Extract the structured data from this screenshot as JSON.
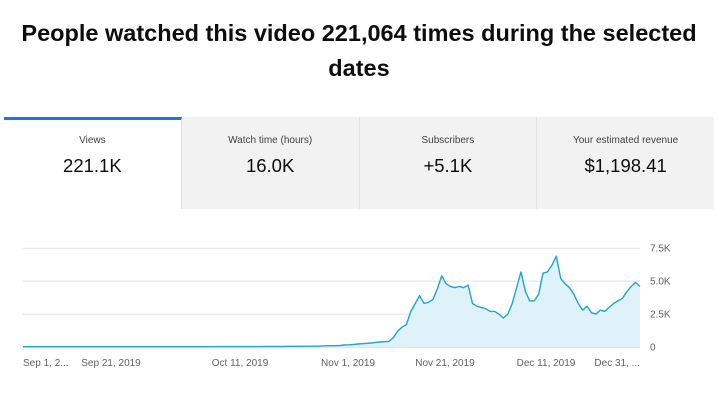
{
  "headline": {
    "line1": "People watched this video 221,064 times during the selected",
    "line2": "dates"
  },
  "tabs": [
    {
      "label": "Views",
      "value": "221.1K",
      "active": true
    },
    {
      "label": "Watch time (hours)",
      "value": "16.0K",
      "active": false
    },
    {
      "label": "Subscribers",
      "value": "+5.1K",
      "active": false
    },
    {
      "label": "Your estimated revenue",
      "value": "$1,198.41",
      "active": false
    }
  ],
  "colors": {
    "accent": "#1e74e0",
    "line": "#21a5c9",
    "fill": "#dff2f9",
    "grid": "#e0e0e0"
  },
  "chart_data": {
    "type": "area",
    "x_tick_labels": [
      "Sep 1, 2...",
      "Sep 21, 2019",
      "Oct 11, 2019",
      "Nov 1, 2019",
      "Nov 21, 2019",
      "Dec 11, 2019",
      "Dec 31, ..."
    ],
    "y_tick_labels": [
      "7.5K",
      "5.0K",
      "2.5K",
      "0"
    ],
    "y_ticks": [
      7500,
      5000,
      2500,
      0
    ],
    "ylim": [
      0,
      8200
    ],
    "series": [
      {
        "values": [
          20,
          20,
          20,
          20,
          20,
          20,
          20,
          20,
          20,
          20,
          20,
          20,
          20,
          20,
          20,
          20,
          20,
          20,
          20,
          20,
          20,
          20,
          20,
          20,
          20,
          20,
          20,
          20,
          20,
          20,
          20,
          20,
          20,
          20,
          20,
          20,
          20,
          20,
          20,
          20,
          20,
          20,
          20,
          20,
          30,
          30,
          30,
          30,
          30,
          30,
          30,
          30,
          30,
          30,
          30,
          40,
          40,
          40,
          40,
          40,
          50,
          50,
          50,
          50,
          60,
          60,
          60,
          60,
          80,
          100,
          100,
          100,
          120,
          150,
          170,
          200,
          230,
          250,
          280,
          300,
          350,
          380,
          400,
          420,
          700,
          1200,
          1500,
          1700,
          2700,
          3300,
          3900,
          3300,
          3400,
          3600,
          4400,
          5400,
          4800,
          4600,
          4500,
          4600,
          4500,
          4700,
          3300,
          3100,
          3000,
          2900,
          2700,
          2700,
          2500,
          2200,
          2500,
          3300,
          4500,
          5700,
          4200,
          3500,
          3500,
          4000,
          5600,
          5700,
          6200,
          6900,
          5200,
          4800,
          4500,
          4000,
          3300,
          2800,
          3100,
          2600,
          2500,
          2800,
          2700,
          3000,
          3300,
          3500,
          3700,
          4200,
          4600,
          4900,
          4600
        ]
      }
    ]
  }
}
